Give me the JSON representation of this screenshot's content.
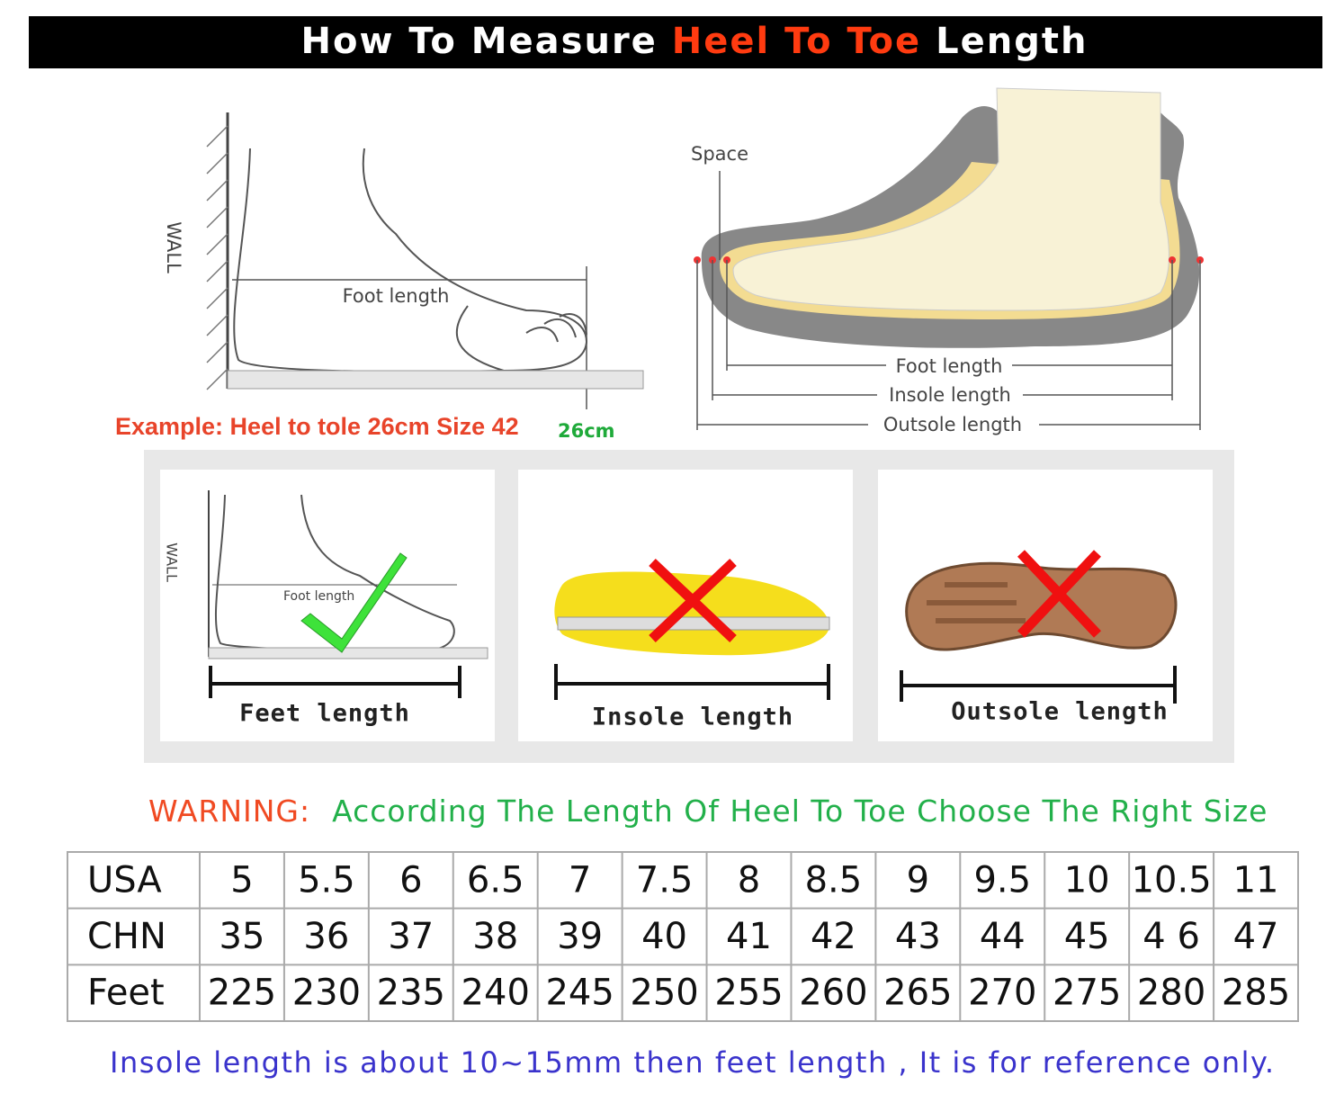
{
  "header": {
    "title_parts": [
      "How To Measure",
      "Heel To Toe",
      "Length"
    ]
  },
  "foot_diagram": {
    "wall": "WALL",
    "foot_length": "Foot length",
    "example": "Example: Heel to tole 26cm Size 42",
    "mark": "26cm"
  },
  "shoe_diagram": {
    "space": "Space",
    "labels": [
      "Foot length",
      "Insole length",
      "Outsole length"
    ]
  },
  "panels": [
    {
      "caption": "Feet length",
      "wall": "WALL",
      "foot_length": "Foot length"
    },
    {
      "caption": "Insole length"
    },
    {
      "caption": "Outsole length"
    }
  ],
  "warning": {
    "label": "WARNING:",
    "text": "According The Length Of Heel To Toe Choose The Right Size"
  },
  "table": {
    "rows": [
      [
        "USA",
        "5",
        "5.5",
        "6",
        "6.5",
        "7",
        "7.5",
        "8",
        "8.5",
        "9",
        "9.5",
        "10",
        "10.5",
        "11"
      ],
      [
        "CHN",
        "35",
        "36",
        "37",
        "38",
        "39",
        "40",
        "41",
        "42",
        "43",
        "44",
        "45",
        "4 6",
        "47"
      ],
      [
        "Feet",
        "225",
        "230",
        "235",
        "240",
        "245",
        "250",
        "255",
        "260",
        "265",
        "270",
        "275",
        "280",
        "285"
      ]
    ]
  },
  "footnote": "Insole length is about 10~15mm then feet length , It is for reference only."
}
